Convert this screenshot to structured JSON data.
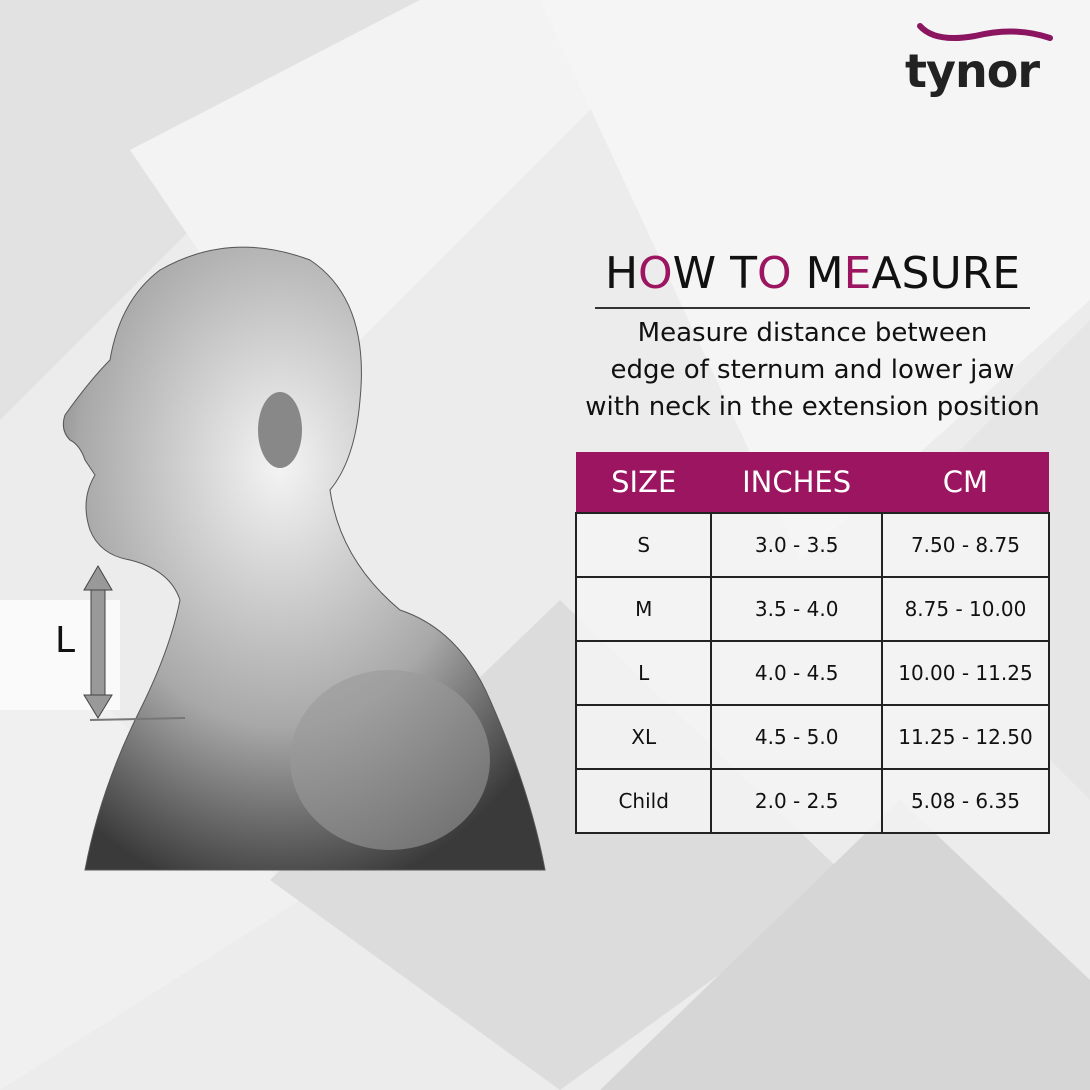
{
  "brand": {
    "name": "tynor",
    "accent": "#9b1560"
  },
  "title": {
    "segments": [
      {
        "text": "H",
        "accent": false
      },
      {
        "text": "O",
        "accent": true
      },
      {
        "text": "W T",
        "accent": false
      },
      {
        "text": "O",
        "accent": true
      },
      {
        "text": " M",
        "accent": false
      },
      {
        "text": "E",
        "accent": true
      },
      {
        "text": "ASURE",
        "accent": false
      }
    ]
  },
  "description": [
    "Measure distance between",
    "edge of sternum and lower jaw",
    "with neck in the extension position"
  ],
  "illustration": {
    "measure_label": "L"
  },
  "table": {
    "headers": [
      "SIZE",
      "INCHES",
      "CM"
    ],
    "rows": [
      [
        "S",
        "3.0 - 3.5",
        "7.50 - 8.75"
      ],
      [
        "M",
        "3.5 - 4.0",
        "8.75 - 10.00"
      ],
      [
        "L",
        "4.0 - 4.5",
        "10.00 - 11.25"
      ],
      [
        "XL",
        "4.5 - 5.0",
        "11.25 - 12.50"
      ],
      [
        "Child",
        "2.0 - 2.5",
        "5.08 - 6.35"
      ]
    ]
  }
}
